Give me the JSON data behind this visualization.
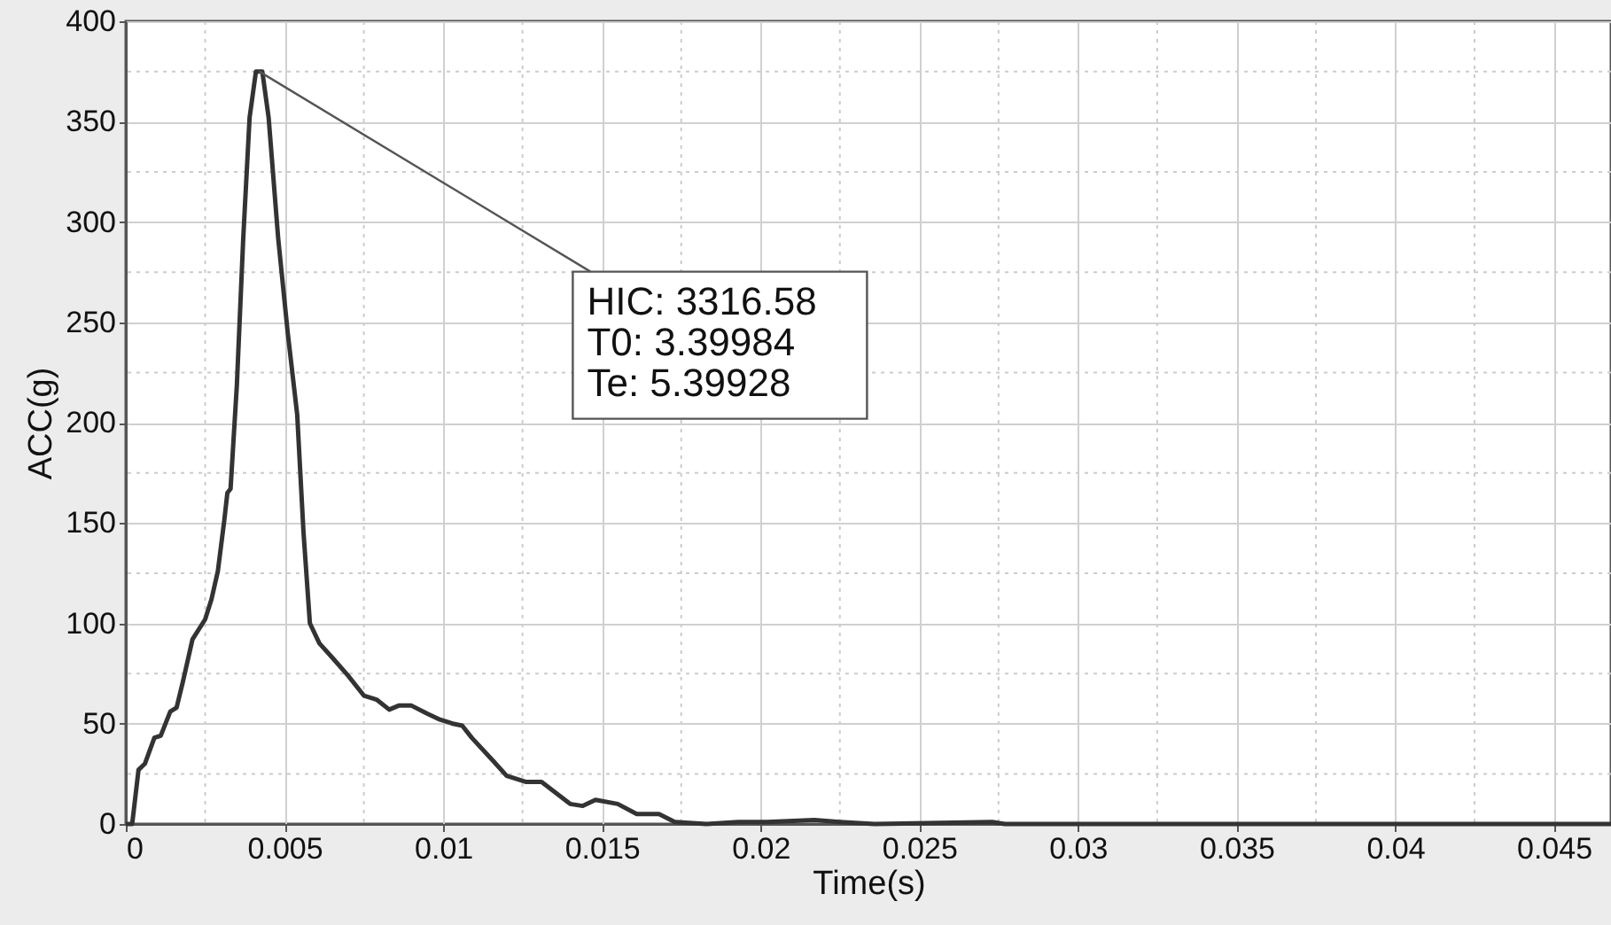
{
  "chart_data": {
    "type": "line",
    "xlabel": "Time(s)",
    "ylabel": "ACC(g)",
    "xlim": [
      0,
      0.0468
    ],
    "xticks": [
      0,
      0.005,
      0.01,
      0.015,
      0.02,
      0.025,
      0.03,
      0.035,
      0.04,
      0.045
    ],
    "ylim": [
      0,
      400
    ],
    "yticks": [
      0,
      50,
      100,
      150,
      200,
      250,
      300,
      350,
      400
    ],
    "grid": true,
    "marker": "none",
    "line_style": "solid",
    "annotations": [
      {
        "text": "HIC: 3316.58\nT0: 3.39984\nTe: 5.39928",
        "x": 0.0042,
        "y": 375
      }
    ],
    "series": [
      {
        "color": "#333333",
        "x": [
          0,
          0.0002,
          0.0004,
          0.0006,
          0.0009,
          0.0011,
          0.0014,
          0.0016,
          0.0018,
          0.0021,
          0.0025,
          0.0027,
          0.0029,
          0.0031,
          0.0032,
          0.0033,
          0.0035,
          0.0037,
          0.0039,
          0.0041,
          0.0043,
          0.0045,
          0.0048,
          0.0051,
          0.0054,
          0.0056,
          0.0058,
          0.0061,
          0.0065,
          0.007,
          0.0075,
          0.0079,
          0.0083,
          0.0086,
          0.009,
          0.0095,
          0.0099,
          0.0103,
          0.0106,
          0.0109,
          0.0116,
          0.012,
          0.0126,
          0.0131,
          0.014,
          0.0144,
          0.0148,
          0.0155,
          0.0161,
          0.0168,
          0.0173,
          0.0183,
          0.0193,
          0.0202,
          0.0217,
          0.0225,
          0.0236,
          0.0273,
          0.0277,
          0.035,
          0.04,
          0.0468
        ],
        "values": [
          0,
          0,
          27,
          30,
          43,
          44,
          56,
          58,
          71,
          92,
          102,
          112,
          126,
          151,
          165,
          167,
          219,
          292,
          352,
          375,
          375,
          352,
          292,
          245,
          204,
          145,
          100,
          90,
          83,
          74,
          64,
          62,
          57,
          59,
          59,
          55,
          52,
          50,
          49,
          43,
          31,
          24,
          21,
          21,
          10,
          9,
          12,
          10,
          5,
          5,
          1,
          0,
          1,
          1,
          2,
          1,
          0,
          1,
          0,
          0,
          0,
          0
        ]
      }
    ]
  }
}
